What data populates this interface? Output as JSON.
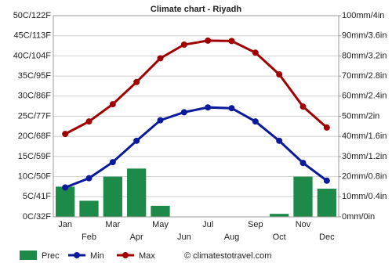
{
  "chart_data": {
    "type": "combo",
    "title": "Climate chart - Riyadh",
    "categories": [
      "Jan",
      "Feb",
      "Mar",
      "Apr",
      "May",
      "Jun",
      "Jul",
      "Aug",
      "Sep",
      "Oct",
      "Nov",
      "Dec"
    ],
    "series": [
      {
        "name": "Prec",
        "type": "bar",
        "axis": "y2",
        "color": "#1e8a4a",
        "values": [
          15,
          8,
          20,
          24,
          5.5,
          0,
          0,
          0,
          0,
          1.5,
          20,
          14
        ]
      },
      {
        "name": "Min",
        "type": "line",
        "color": "#0a1a9a",
        "values": [
          7.3,
          9.6,
          13.6,
          18.9,
          24,
          26,
          27.2,
          27,
          23.7,
          18.9,
          13.4,
          9
        ]
      },
      {
        "name": "Max",
        "type": "line",
        "color": "#a00000",
        "values": [
          20.6,
          23.7,
          28,
          33.5,
          39.4,
          42.8,
          43.8,
          43.7,
          40.8,
          35.4,
          27.4,
          22.2
        ]
      }
    ],
    "ylim": [
      0,
      50
    ],
    "yticks": [
      {
        "value": 0,
        "label": "0C/32F"
      },
      {
        "value": 5,
        "label": "5C/41F"
      },
      {
        "value": 10,
        "label": "10C/50F"
      },
      {
        "value": 15,
        "label": "15C/59F"
      },
      {
        "value": 20,
        "label": "20C/68F"
      },
      {
        "value": 25,
        "label": "25C/77F"
      },
      {
        "value": 30,
        "label": "30C/86F"
      },
      {
        "value": 35,
        "label": "35C/95F"
      },
      {
        "value": 40,
        "label": "40C/104F"
      },
      {
        "value": 45,
        "label": "45C/113F"
      },
      {
        "value": 50,
        "label": "50C/122F"
      }
    ],
    "y2lim": [
      0,
      100
    ],
    "y2ticks": [
      {
        "value": 0,
        "label": "0mm/0in"
      },
      {
        "value": 10,
        "label": "10mm/0.4in"
      },
      {
        "value": 20,
        "label": "20mm/0.8in"
      },
      {
        "value": 30,
        "label": "30mm/1.2in"
      },
      {
        "value": 40,
        "label": "40mm/1.6in"
      },
      {
        "value": 50,
        "label": "50mm/2in"
      },
      {
        "value": 60,
        "label": "60mm/2.4in"
      },
      {
        "value": 70,
        "label": "70mm/2.8in"
      },
      {
        "value": 80,
        "label": "80mm/3.2in"
      },
      {
        "value": 90,
        "label": "90mm/3.6in"
      },
      {
        "value": 100,
        "label": "100mm/4in"
      }
    ],
    "grid": true,
    "source": "© climatestotravel.com"
  }
}
